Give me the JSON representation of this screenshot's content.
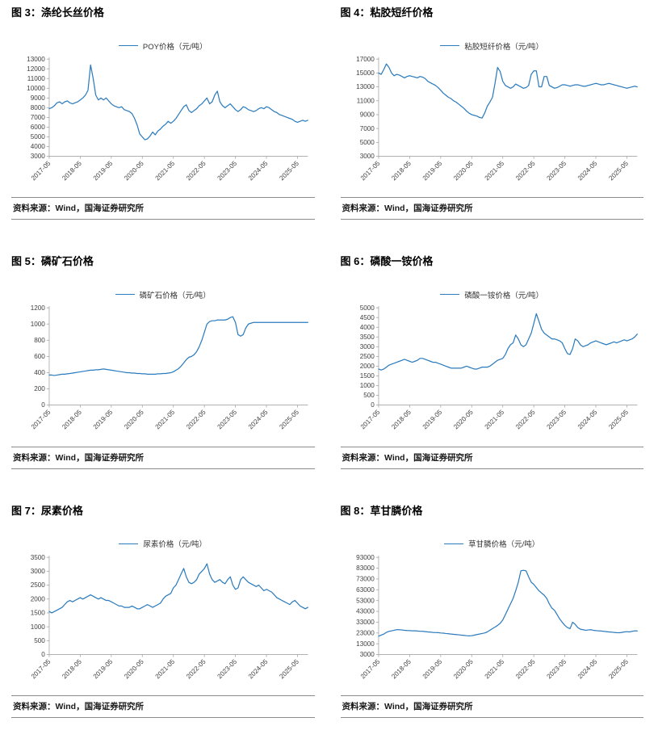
{
  "theme": {
    "axis_color": "#A6A6A6",
    "tick_text_color": "#404040",
    "background": "#FFFFFF",
    "series_blue": "#2B7BBD"
  },
  "chart_data": [
    {
      "figure_label": "图 3：涤纶长丝价格",
      "type": "line",
      "legend": "POY价格（元/吨）",
      "series_color": "#2B7BBD",
      "ylim": [
        3000,
        13000
      ],
      "ytick_interval": 1000,
      "x_tick_labels": [
        "2017-05",
        "2018-05",
        "2019-05",
        "2020-05",
        "2021-05",
        "2022-05",
        "2023-05",
        "2024-05",
        "2025-05"
      ],
      "x_tick_month_indices": [
        0,
        12,
        24,
        36,
        48,
        60,
        72,
        84,
        96
      ],
      "x_unit": "month",
      "values": [
        7900,
        8000,
        8200,
        8500,
        8600,
        8400,
        8600,
        8700,
        8500,
        8400,
        8500,
        8600,
        8800,
        9000,
        9300,
        9800,
        12400,
        11000,
        9300,
        8800,
        9000,
        8800,
        9000,
        8700,
        8400,
        8200,
        8100,
        8000,
        8100,
        7800,
        7700,
        7600,
        7400,
        6900,
        6200,
        5300,
        5000,
        4700,
        4800,
        5100,
        5500,
        5200,
        5600,
        5800,
        6100,
        6300,
        6600,
        6400,
        6600,
        6900,
        7300,
        7700,
        8100,
        8300,
        7700,
        7500,
        7700,
        7900,
        8200,
        8400,
        8700,
        9000,
        8400,
        8600,
        9300,
        9700,
        8600,
        8200,
        8000,
        8200,
        8400,
        8100,
        7800,
        7600,
        7800,
        8100,
        8000,
        7800,
        7700,
        7600,
        7700,
        7900,
        8000,
        7900,
        8100,
        8000,
        7800,
        7600,
        7500,
        7300,
        7200,
        7100,
        7000,
        6900,
        6800,
        6600,
        6500,
        6600,
        6700,
        6600,
        6700
      ],
      "source": "资料来源：Wind，国海证券研究所"
    },
    {
      "figure_label": "图 4：粘胶短纤价格",
      "type": "line",
      "legend": "粘胶短纤价格（元/吨）",
      "series_color": "#2B7BBD",
      "ylim": [
        3000,
        17000
      ],
      "ytick_interval": 2000,
      "x_tick_labels": [
        "2017-05",
        "2018-05",
        "2019-05",
        "2020-05",
        "2021-05",
        "2022-05",
        "2023-05",
        "2024-05",
        "2025-05"
      ],
      "x_tick_month_indices": [
        0,
        12,
        24,
        36,
        48,
        60,
        72,
        84,
        96
      ],
      "x_unit": "month",
      "values": [
        15000,
        14800,
        15500,
        16300,
        15800,
        15000,
        14600,
        14800,
        14700,
        14500,
        14300,
        14500,
        14600,
        14500,
        14400,
        14300,
        14500,
        14400,
        14200,
        13800,
        13600,
        13400,
        13200,
        12900,
        12500,
        12100,
        11800,
        11500,
        11300,
        11000,
        10800,
        10500,
        10200,
        9900,
        9500,
        9200,
        9000,
        8900,
        8800,
        8600,
        8500,
        9200,
        10200,
        10800,
        11500,
        13500,
        15800,
        15200,
        13800,
        13200,
        13000,
        12800,
        13000,
        13400,
        13200,
        13000,
        12800,
        12900,
        13200,
        14800,
        15300,
        15300,
        13000,
        13000,
        14500,
        14500,
        13200,
        13000,
        12800,
        12900,
        13100,
        13300,
        13300,
        13200,
        13100,
        13200,
        13300,
        13300,
        13200,
        13100,
        13100,
        13200,
        13300,
        13400,
        13500,
        13400,
        13300,
        13300,
        13400,
        13500,
        13400,
        13300,
        13200,
        13100,
        13000,
        12900,
        12800,
        12900,
        13000,
        13100,
        13000
      ],
      "source": "资料来源：Wind，国海证券研究所"
    },
    {
      "figure_label": "图 5：磷矿石价格",
      "type": "line",
      "legend": "磷矿石价格（元/吨）",
      "series_color": "#2B7BBD",
      "ylim": [
        0,
        1200
      ],
      "ytick_interval": 200,
      "x_tick_labels": [
        "2017-05",
        "2018-05",
        "2019-05",
        "2020-05",
        "2021-05",
        "2022-05",
        "2023-05",
        "2024-05",
        "2025-05"
      ],
      "x_tick_month_indices": [
        0,
        12,
        24,
        36,
        48,
        60,
        72,
        84,
        96
      ],
      "x_unit": "month",
      "values": [
        370,
        370,
        365,
        370,
        375,
        380,
        380,
        385,
        390,
        395,
        400,
        405,
        410,
        415,
        420,
        425,
        430,
        430,
        435,
        435,
        440,
        445,
        440,
        435,
        430,
        425,
        420,
        415,
        410,
        405,
        400,
        400,
        395,
        395,
        390,
        390,
        385,
        385,
        380,
        380,
        380,
        380,
        385,
        385,
        390,
        390,
        395,
        400,
        410,
        430,
        450,
        480,
        520,
        560,
        590,
        600,
        620,
        660,
        720,
        800,
        900,
        1000,
        1030,
        1040,
        1040,
        1050,
        1050,
        1050,
        1050,
        1060,
        1080,
        1090,
        1020,
        870,
        850,
        870,
        950,
        1000,
        1010,
        1020,
        1020,
        1020,
        1020,
        1020,
        1020,
        1020,
        1020,
        1020,
        1020,
        1020,
        1020,
        1020,
        1020,
        1020,
        1020,
        1020,
        1020,
        1020,
        1020,
        1020,
        1020
      ],
      "source": "资料来源：Wind，国海证券研究所"
    },
    {
      "figure_label": "图 6：磷酸一铵价格",
      "type": "line",
      "legend": "磷酸一铵价格（元/吨）",
      "series_color": "#2B7BBD",
      "ylim": [
        0,
        5000
      ],
      "ytick_interval": 500,
      "x_tick_labels": [
        "2017-05",
        "2018-05",
        "2019-05",
        "2020-05",
        "2021-05",
        "2022-05",
        "2023-05",
        "2024-05",
        "2025-05"
      ],
      "x_tick_month_indices": [
        0,
        12,
        24,
        36,
        48,
        60,
        72,
        84,
        96
      ],
      "x_unit": "month",
      "values": [
        1850,
        1800,
        1850,
        1950,
        2050,
        2100,
        2150,
        2200,
        2250,
        2300,
        2350,
        2300,
        2250,
        2200,
        2250,
        2300,
        2400,
        2400,
        2350,
        2300,
        2250,
        2200,
        2200,
        2150,
        2100,
        2050,
        2000,
        1950,
        1900,
        1900,
        1900,
        1900,
        1900,
        1950,
        2000,
        1950,
        1900,
        1850,
        1850,
        1900,
        1950,
        1950,
        1950,
        2000,
        2100,
        2200,
        2300,
        2350,
        2400,
        2600,
        2900,
        3100,
        3200,
        3600,
        3400,
        3100,
        3000,
        3100,
        3400,
        3700,
        4200,
        4700,
        4300,
        3900,
        3700,
        3600,
        3500,
        3400,
        3400,
        3350,
        3300,
        3200,
        2900,
        2650,
        2600,
        2900,
        3400,
        3300,
        3100,
        3000,
        3050,
        3100,
        3200,
        3250,
        3300,
        3250,
        3200,
        3150,
        3100,
        3150,
        3200,
        3250,
        3200,
        3250,
        3300,
        3350,
        3300,
        3350,
        3400,
        3500,
        3650
      ],
      "source": "资料来源：Wind，国海证券研究所"
    },
    {
      "figure_label": "图 7：尿素价格",
      "type": "line",
      "legend": "尿素价格（元/吨）",
      "series_color": "#2B7BBD",
      "ylim": [
        0,
        3500
      ],
      "ytick_interval": 500,
      "x_tick_labels": [
        "2017-05",
        "2018-05",
        "2019-05",
        "2020-05",
        "2021-05",
        "2022-05",
        "2023-05",
        "2024-05",
        "2025-05"
      ],
      "x_tick_month_indices": [
        0,
        12,
        24,
        36,
        48,
        60,
        72,
        84,
        96
      ],
      "x_unit": "month",
      "values": [
        1550,
        1500,
        1550,
        1600,
        1650,
        1700,
        1800,
        1900,
        1950,
        1900,
        1950,
        2000,
        2050,
        2000,
        2050,
        2100,
        2150,
        2100,
        2050,
        2000,
        2050,
        2000,
        1950,
        1950,
        1900,
        1850,
        1800,
        1750,
        1750,
        1700,
        1700,
        1700,
        1750,
        1700,
        1650,
        1650,
        1700,
        1750,
        1800,
        1750,
        1700,
        1750,
        1800,
        1850,
        2000,
        2100,
        2150,
        2200,
        2400,
        2500,
        2700,
        2900,
        3100,
        2800,
        2600,
        2550,
        2600,
        2700,
        2900,
        3000,
        3100,
        3270,
        2900,
        2700,
        2600,
        2650,
        2700,
        2600,
        2550,
        2700,
        2800,
        2500,
        2350,
        2400,
        2700,
        2800,
        2700,
        2600,
        2550,
        2500,
        2450,
        2500,
        2400,
        2300,
        2350,
        2300,
        2250,
        2150,
        2050,
        2000,
        1950,
        1900,
        1850,
        1800,
        1900,
        1950,
        1850,
        1750,
        1700,
        1650,
        1700
      ],
      "source": "资料来源：Wind，国海证券研究所"
    },
    {
      "figure_label": "图 8：草甘膦价格",
      "type": "line",
      "legend": "草甘膦价格（元/吨）",
      "series_color": "#2B7BBD",
      "ylim": [
        3000,
        93000
      ],
      "ytick_interval": 10000,
      "x_tick_labels": [
        "2017-05",
        "2018-05",
        "2019-05",
        "2020-05",
        "2021-05",
        "2022-05",
        "2023-05",
        "2024-05",
        "2025-05"
      ],
      "x_tick_month_indices": [
        0,
        12,
        24,
        36,
        48,
        60,
        72,
        84,
        96
      ],
      "x_unit": "month",
      "values": [
        20000,
        21000,
        22000,
        23500,
        24500,
        25000,
        25500,
        26000,
        26000,
        25800,
        25500,
        25300,
        25200,
        25000,
        25000,
        24800,
        24600,
        24500,
        24300,
        24000,
        23800,
        23500,
        23400,
        23300,
        23000,
        22800,
        22500,
        22300,
        22000,
        21800,
        21500,
        21300,
        21000,
        20800,
        20500,
        20300,
        20500,
        21000,
        21500,
        22000,
        22500,
        23000,
        24000,
        25500,
        27000,
        28500,
        30000,
        32000,
        35000,
        40000,
        45000,
        50000,
        55000,
        62000,
        70000,
        80500,
        81000,
        80500,
        75000,
        70000,
        68000,
        65000,
        62000,
        60000,
        58000,
        55000,
        50000,
        46000,
        44000,
        40000,
        36000,
        33000,
        30000,
        28000,
        27000,
        33000,
        31000,
        28000,
        26500,
        26000,
        25500,
        25800,
        26000,
        25500,
        25200,
        25000,
        24800,
        24500,
        24300,
        24000,
        23800,
        23500,
        23300,
        23200,
        23500,
        24000,
        24200,
        24000,
        24500,
        25000,
        24800
      ],
      "source": "资料来源：Wind，国海证券研究所"
    }
  ]
}
